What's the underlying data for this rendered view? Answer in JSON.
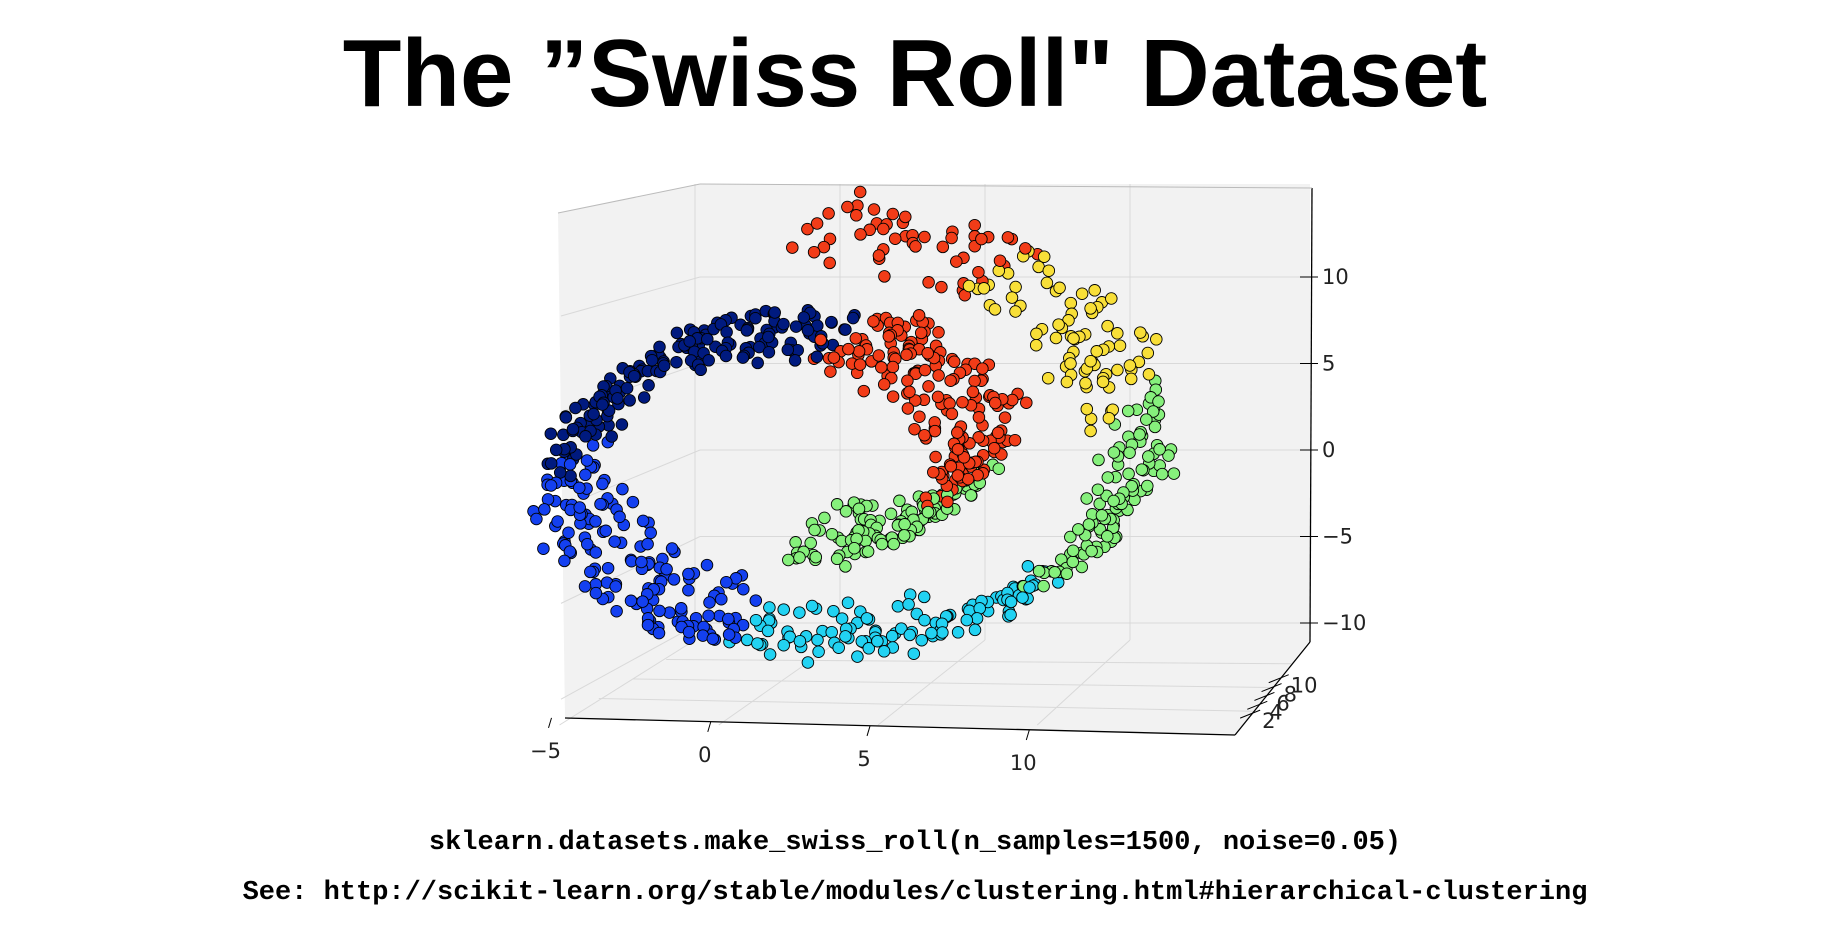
{
  "title": "The ”Swiss Roll\" Dataset",
  "code_line": "sklearn.datasets.make_swiss_roll(n_samples=1500, noise=0.05)",
  "see_line": "See: http://scikit-learn.org/stable/modules/clustering.html#hierarchical-clustering",
  "chart_data": {
    "type": "scatter",
    "subtype": "3d-scatter",
    "title": "The ”Swiss Roll\" Dataset",
    "xlabel": "",
    "ylabel": "",
    "zlabel": "",
    "x_ticks": [
      -5,
      0,
      5,
      10
    ],
    "y_ticks": [
      2,
      4,
      6,
      8,
      10
    ],
    "z_ticks": [
      -10,
      -5,
      0,
      5,
      10
    ],
    "xlim": [
      -10,
      13
    ],
    "ylim": [
      0,
      21
    ],
    "zlim": [
      -12,
      15
    ],
    "grid": true,
    "n_points_shown": 1000,
    "colormap": "jet",
    "cluster_colors": [
      "#001a7f",
      "#1440f0",
      "#22d2f2",
      "#86f07c",
      "#f8df38",
      "#f23c18"
    ],
    "point_edge_color": "#000000",
    "pane_color": "#f2f2f2",
    "grid_color": "#d9d9d9"
  }
}
